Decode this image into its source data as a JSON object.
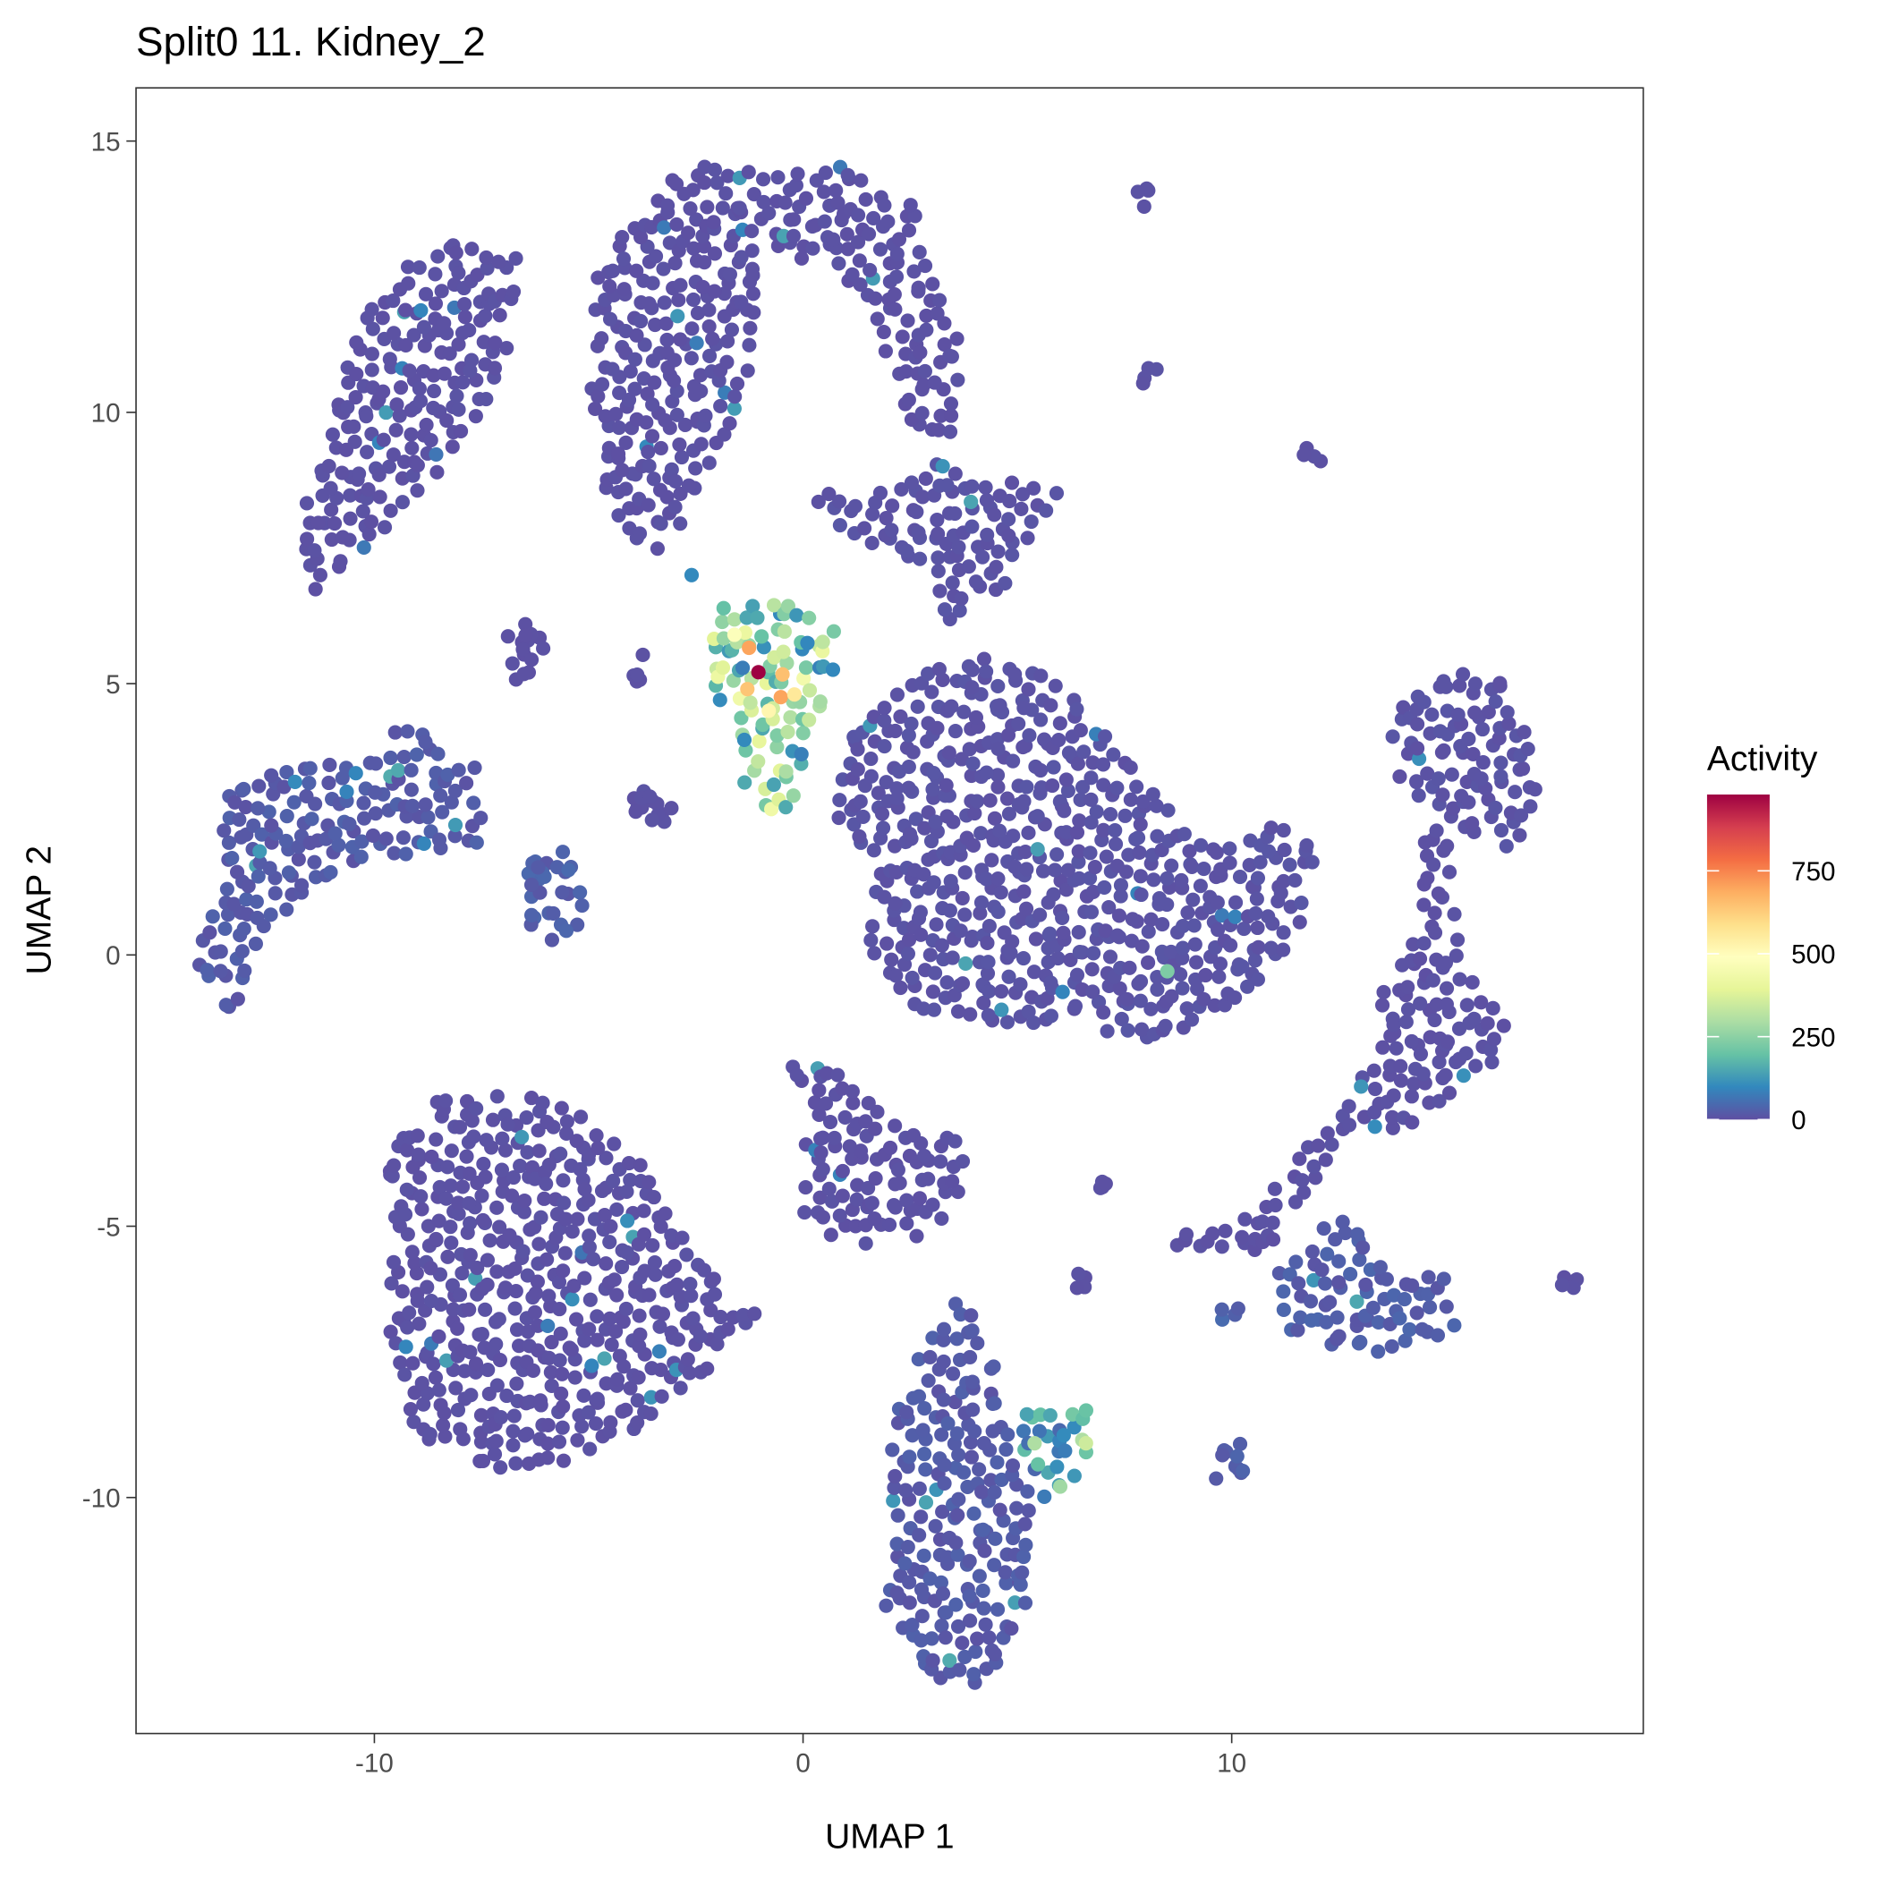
{
  "chart_data": {
    "type": "scatter",
    "title": "Split0 11. Kidney_2",
    "xlabel": "UMAP 1",
    "ylabel": "UMAP 2",
    "xlim": [
      -15.56,
      19.6
    ],
    "ylim": [
      -14.35,
      15.98
    ],
    "x_ticks": [
      -10,
      0,
      10
    ],
    "x_tick_labels": [
      "-10",
      "0",
      "10"
    ],
    "y_ticks": [
      -10,
      -5,
      0,
      5,
      10,
      15
    ],
    "y_tick_labels": [
      "-10",
      "-5",
      "0",
      "5",
      "10",
      "15"
    ],
    "grid": false,
    "theme": "bw",
    "legend": {
      "title": "Activity",
      "placement": "right",
      "type": "colorbar",
      "limits": [
        0,
        980
      ],
      "ticks": [
        0,
        250,
        500,
        750
      ],
      "tick_labels": [
        "0",
        "250",
        "500",
        "750"
      ],
      "palette": "Spectral (reversed)",
      "colors": [
        "#5E4FA2",
        "#3288BD",
        "#66C2A5",
        "#ABDDA4",
        "#E6F598",
        "#FFFFBF",
        "#FEE08B",
        "#FDAE61",
        "#F46D43",
        "#D53E4F",
        "#9E0142"
      ]
    },
    "clusters": [
      {
        "name": "upper-left",
        "activity": 5,
        "outline": [
          [
            -11.85,
            7.61
          ],
          [
            -10.3,
            12.05
          ],
          [
            -8.06,
            13.38
          ],
          [
            -6.66,
            12.82
          ],
          [
            -6.94,
            10.94
          ],
          [
            -8.06,
            9.16
          ],
          [
            -9.19,
            8.28
          ],
          [
            -11.43,
            6.61
          ]
        ]
      },
      {
        "name": "upper-middle",
        "activity": 5,
        "outline": [
          [
            -4.97,
            12.27
          ],
          [
            -3.29,
            14.49
          ],
          [
            -1.32,
            14.71
          ],
          [
            -0.76,
            13.16
          ],
          [
            -1.32,
            10.49
          ],
          [
            -2.44,
            8.28
          ],
          [
            -3.57,
            7.28
          ],
          [
            -4.55,
            8.28
          ],
          [
            -4.97,
            10.49
          ]
        ]
      },
      {
        "name": "upper-arc",
        "activity": 5,
        "outline": [
          [
            -1.32,
            14.27
          ],
          [
            0.93,
            14.6
          ],
          [
            2.61,
            13.82
          ],
          [
            3.74,
            11.38
          ],
          [
            3.46,
            9.61
          ],
          [
            2.61,
            9.39
          ],
          [
            2.05,
            10.94
          ],
          [
            0.93,
            12.49
          ],
          [
            -0.76,
            12.94
          ]
        ]
      },
      {
        "name": "bridge",
        "activity": 8,
        "outline": [
          [
            0.08,
            8.5
          ],
          [
            1.49,
            8.5
          ],
          [
            2.89,
            9.16
          ],
          [
            4.3,
            8.94
          ],
          [
            5.98,
            8.5
          ],
          [
            4.86,
            6.94
          ],
          [
            3.46,
            6.06
          ],
          [
            2.61,
            7.17
          ],
          [
            0.93,
            7.83
          ]
        ]
      },
      {
        "name": "center-right",
        "activity": 8,
        "outline": [
          [
            0.93,
            3.84
          ],
          [
            2.61,
            5.17
          ],
          [
            4.58,
            5.61
          ],
          [
            5.98,
            5.17
          ],
          [
            7.95,
            3.17
          ],
          [
            9.35,
            2.06
          ],
          [
            11.04,
            2.51
          ],
          [
            12.02,
            1.84
          ],
          [
            11.6,
            0.51
          ],
          [
            10.48,
            -0.82
          ],
          [
            8.23,
            -1.6
          ],
          [
            5.98,
            -1.26
          ],
          [
            4.58,
            -1.26
          ],
          [
            2.05,
            -1.04
          ],
          [
            1.49,
            0.29
          ],
          [
            1.77,
            1.62
          ],
          [
            0.79,
            2.51
          ]
        ]
      },
      {
        "name": "hotspot",
        "activity": 260,
        "outline": [
          [
            -2.02,
            6.5
          ],
          [
            -0.2,
            6.5
          ],
          [
            0.93,
            5.84
          ],
          [
            0.37,
            4.28
          ],
          [
            -0.48,
            2.29
          ],
          [
            -1.32,
            2.95
          ],
          [
            -1.88,
            4.28
          ],
          [
            -2.16,
            5.17
          ]
        ]
      },
      {
        "name": "left-elongated",
        "activity": 20,
        "outline": [
          [
            -14.1,
            -0.16
          ],
          [
            -13.4,
            3.17
          ],
          [
            -11.43,
            3.62
          ],
          [
            -10.31,
            3.39
          ],
          [
            -9.47,
            4.28
          ],
          [
            -9.19,
            4.28
          ],
          [
            -7.5,
            3.39
          ],
          [
            -7.36,
            2.06
          ],
          [
            -9.19,
            1.84
          ],
          [
            -10.87,
            1.62
          ],
          [
            -12.56,
            0.29
          ],
          [
            -13.4,
            -1.38
          ]
        ]
      },
      {
        "name": "lower-left",
        "activity": 5,
        "outline": [
          [
            -9.75,
            -3.71
          ],
          [
            -8.62,
            -2.71
          ],
          [
            -6.1,
            -2.49
          ],
          [
            -3.85,
            -3.71
          ],
          [
            -2.44,
            -5.7
          ],
          [
            -1.04,
            -6.59
          ],
          [
            -1.32,
            -7.03
          ],
          [
            -3.01,
            -8.14
          ],
          [
            -4.69,
            -9.25
          ],
          [
            -6.94,
            -9.59
          ],
          [
            -9.19,
            -8.81
          ],
          [
            -9.75,
            -6.81
          ],
          [
            -9.47,
            -5.04
          ]
        ]
      },
      {
        "name": "center-lower",
        "activity": 5,
        "outline": [
          [
            -0.34,
            -1.82
          ],
          [
            1.21,
            -2.04
          ],
          [
            2.05,
            -3.04
          ],
          [
            3.74,
            -3.37
          ],
          [
            4.02,
            -4.04
          ],
          [
            2.89,
            -5.26
          ],
          [
            0.93,
            -5.37
          ],
          [
            -0.06,
            -4.81
          ],
          [
            0.08,
            -3.26
          ]
        ]
      },
      {
        "name": "bottom-tall",
        "activity": 20,
        "outline": [
          [
            2.05,
            -8.36
          ],
          [
            3.46,
            -6.37
          ],
          [
            4.16,
            -6.37
          ],
          [
            4.58,
            -7.92
          ],
          [
            5.42,
            -9.92
          ],
          [
            5.42,
            -11.69
          ],
          [
            4.3,
            -13.47
          ],
          [
            3.17,
            -13.47
          ],
          [
            1.91,
            -12.14
          ],
          [
            2.05,
            -10.14
          ]
        ]
      },
      {
        "name": "bottom-side",
        "activity": 130,
        "outline": [
          [
            5.0,
            -8.14
          ],
          [
            6.83,
            -8.36
          ],
          [
            6.54,
            -9.47
          ],
          [
            5.7,
            -10.14
          ],
          [
            5.0,
            -9.03
          ]
        ]
      },
      {
        "name": "right-top",
        "activity": 8,
        "outline": [
          [
            13.57,
            4.28
          ],
          [
            14.97,
            5.28
          ],
          [
            16.38,
            5.06
          ],
          [
            17.22,
            3.39
          ],
          [
            16.66,
            1.84
          ],
          [
            15.53,
            2.29
          ],
          [
            13.85,
            3.17
          ]
        ]
      },
      {
        "name": "right-stem",
        "activity": 5,
        "outline": [
          [
            14.27,
            2.51
          ],
          [
            14.97,
            2.29
          ],
          [
            15.39,
            -0.16
          ],
          [
            16.38,
            -1.26
          ],
          [
            16.24,
            -2.15
          ],
          [
            13.85,
            -3.26
          ],
          [
            12.72,
            -3.26
          ],
          [
            13.57,
            -0.6
          ],
          [
            14.41,
            0.73
          ]
        ]
      },
      {
        "name": "right-lower",
        "activity": 25,
        "outline": [
          [
            11.04,
            -5.92
          ],
          [
            12.72,
            -4.59
          ],
          [
            13.29,
            -5.48
          ],
          [
            14.97,
            -5.92
          ],
          [
            15.25,
            -7.03
          ],
          [
            13.29,
            -7.48
          ],
          [
            11.32,
            -7.03
          ]
        ]
      },
      {
        "name": "right-diagonal",
        "activity": 5,
        "outline": [
          [
            8.37,
            -5.26
          ],
          [
            10.48,
            -4.81
          ],
          [
            13.01,
            -2.15
          ],
          [
            13.29,
            -2.6
          ],
          [
            10.76,
            -5.48
          ],
          [
            9.07,
            -5.7
          ]
        ]
      }
    ],
    "small_groups": [
      {
        "x": -6.52,
        "y": 5.61,
        "spread": 0.5,
        "activity": 5
      },
      {
        "x": -3.57,
        "y": 2.73,
        "spread": 0.5,
        "activity": 5
      },
      {
        "x": -3.9,
        "y": 5.4,
        "spread": 0.3,
        "activity": 5
      },
      {
        "x": -5.81,
        "y": 1.07,
        "spread": 0.7,
        "activity": 30
      },
      {
        "x": 7.95,
        "y": 13.93,
        "spread": 0.25,
        "activity": 5
      },
      {
        "x": 8.09,
        "y": 10.6,
        "spread": 0.25,
        "activity": 5
      },
      {
        "x": 11.88,
        "y": 9.16,
        "spread": 0.25,
        "activity": 5
      },
      {
        "x": 9.92,
        "y": -9.36,
        "spread": 0.4,
        "activity": 30
      },
      {
        "x": 6.97,
        "y": -4.37,
        "spread": 0.2,
        "activity": 5
      },
      {
        "x": 6.49,
        "y": -6.04,
        "spread": 0.25,
        "activity": 5
      },
      {
        "x": 17.92,
        "y": -6.04,
        "spread": 0.3,
        "activity": 5
      },
      {
        "x": 9.92,
        "y": -6.59,
        "spread": 0.25,
        "activity": 40
      }
    ],
    "highlight_points": [
      {
        "x": -1.04,
        "y": 5.21,
        "activity": 980
      },
      {
        "x": -1.26,
        "y": 5.66,
        "activity": 700
      },
      {
        "x": -0.48,
        "y": 5.17,
        "activity": 650
      },
      {
        "x": -0.52,
        "y": 4.75,
        "activity": 700
      },
      {
        "x": -0.8,
        "y": 4.5,
        "activity": 520
      },
      {
        "x": -0.2,
        "y": 4.8,
        "activity": 560
      },
      {
        "x": -1.6,
        "y": 5.9,
        "activity": 480
      },
      {
        "x": -1.3,
        "y": 4.9,
        "activity": 640
      },
      {
        "x": 8.5,
        "y": -0.3,
        "activity": 230
      },
      {
        "x": 5.4,
        "y": -9.0,
        "activity": 300
      },
      {
        "x": 6.6,
        "y": -9.0,
        "activity": 350
      },
      {
        "x": 6.0,
        "y": -9.8,
        "activity": 280
      },
      {
        "x": -4.1,
        "y": -4.9,
        "activity": 110
      },
      {
        "x": -2.6,
        "y": 7.0,
        "activity": 100
      }
    ]
  }
}
